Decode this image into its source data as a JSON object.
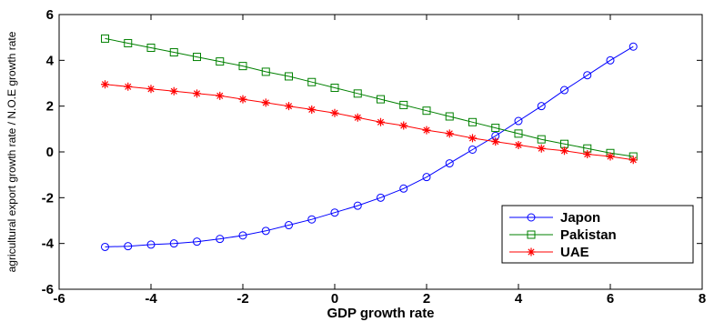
{
  "chart_data": {
    "type": "line",
    "xlabel": "GDP growth rate",
    "ylabel": "agricultural export growth rate / N.O.E growth rate",
    "xlim": [
      -6,
      8
    ],
    "ylim": [
      -6,
      6
    ],
    "xticks": [
      -6,
      -4,
      -2,
      0,
      2,
      4,
      6,
      8
    ],
    "yticks": [
      -6,
      -4,
      -2,
      0,
      2,
      4,
      6
    ],
    "grid": false,
    "legend_position": "bottom-right",
    "series": [
      {
        "name": "Japon",
        "color": "#0000ff",
        "marker": "circle",
        "x": [
          -5,
          -4.5,
          -4,
          -3.5,
          -3,
          -2.5,
          -2,
          -1.5,
          -1,
          -0.5,
          0,
          0.5,
          1,
          1.5,
          2,
          2.5,
          3,
          3.5,
          4,
          4.5,
          5,
          5.5,
          6,
          6.5
        ],
        "y": [
          -4.15,
          -4.12,
          -4.05,
          -4.0,
          -3.92,
          -3.8,
          -3.65,
          -3.45,
          -3.2,
          -2.95,
          -2.65,
          -2.35,
          -2.0,
          -1.6,
          -1.1,
          -0.5,
          0.1,
          0.7,
          1.35,
          2.0,
          2.7,
          3.35,
          4.0,
          4.6
        ]
      },
      {
        "name": "Pakistan",
        "color": "#008000",
        "marker": "square",
        "x": [
          -5,
          -4.5,
          -4,
          -3.5,
          -3,
          -2.5,
          -2,
          -1.5,
          -1,
          -0.5,
          0,
          0.5,
          1,
          1.5,
          2,
          2.5,
          3,
          3.5,
          4,
          4.5,
          5,
          5.5,
          6,
          6.5
        ],
        "y": [
          4.95,
          4.75,
          4.55,
          4.35,
          4.15,
          3.95,
          3.75,
          3.5,
          3.3,
          3.05,
          2.8,
          2.55,
          2.3,
          2.05,
          1.8,
          1.55,
          1.3,
          1.05,
          0.8,
          0.55,
          0.35,
          0.15,
          -0.05,
          -0.2
        ]
      },
      {
        "name": "UAE",
        "color": "#ff0000",
        "marker": "star",
        "x": [
          -5,
          -4.5,
          -4,
          -3.5,
          -3,
          -2.5,
          -2,
          -1.5,
          -1,
          -0.5,
          0,
          0.5,
          1,
          1.5,
          2,
          2.5,
          3,
          3.5,
          4,
          4.5,
          5,
          5.5,
          6,
          6.5
        ],
        "y": [
          2.95,
          2.85,
          2.75,
          2.65,
          2.55,
          2.45,
          2.3,
          2.15,
          2.0,
          1.85,
          1.7,
          1.5,
          1.3,
          1.15,
          0.95,
          0.8,
          0.6,
          0.45,
          0.3,
          0.15,
          0.05,
          -0.1,
          -0.2,
          -0.35
        ]
      }
    ]
  }
}
